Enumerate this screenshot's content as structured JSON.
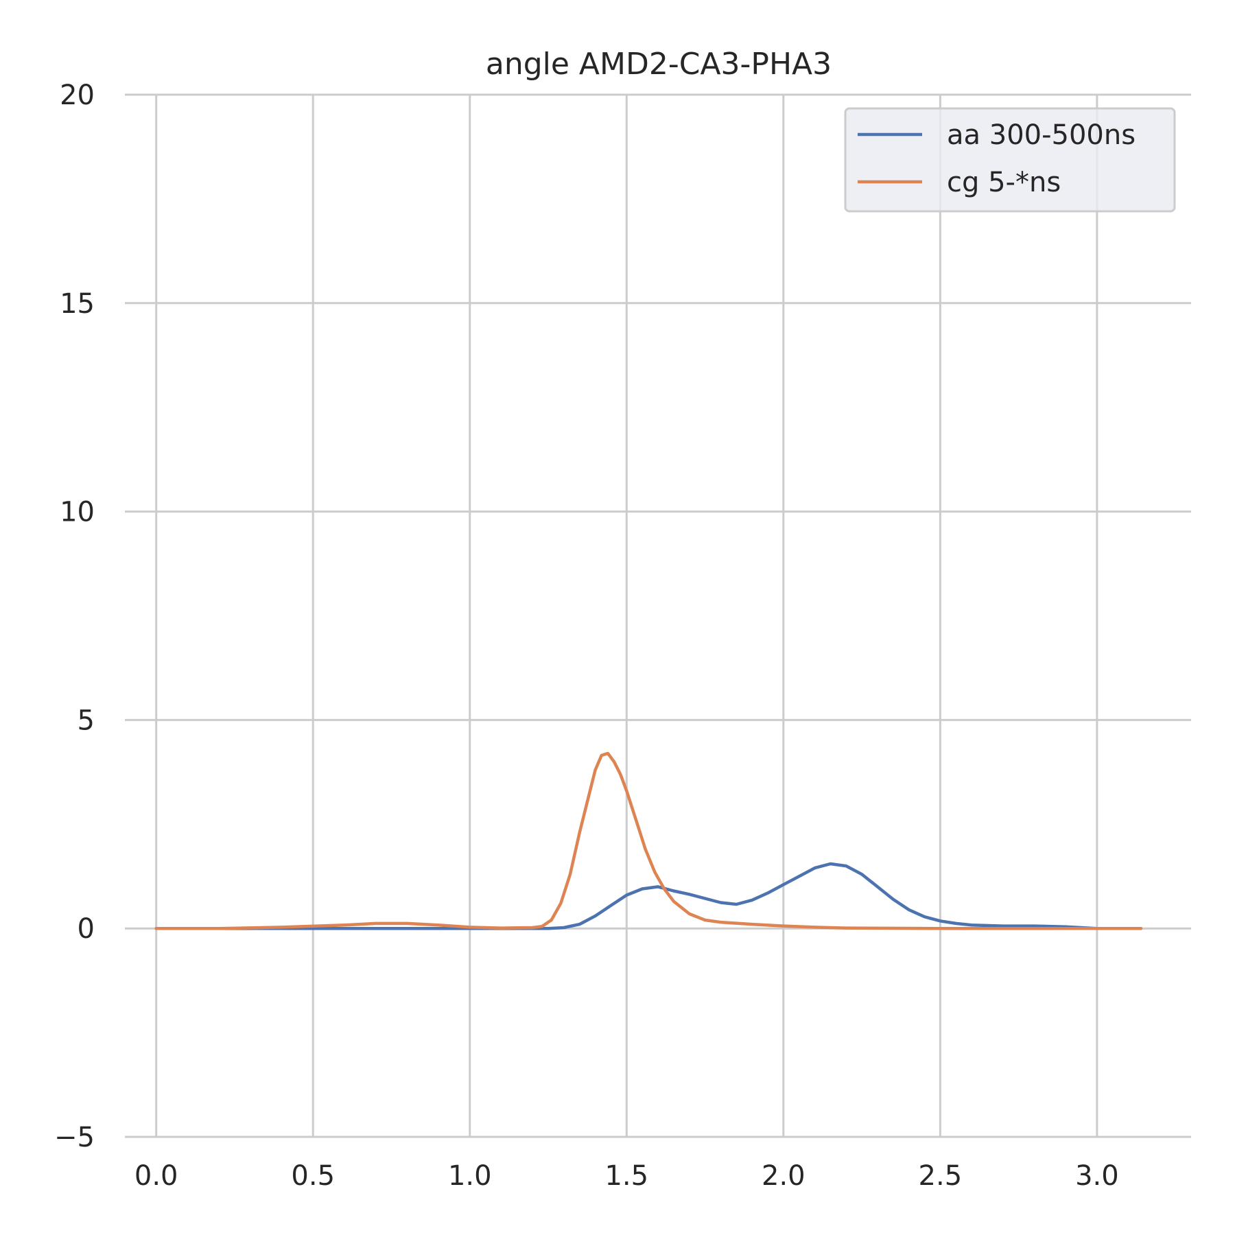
{
  "chart_data": {
    "type": "line",
    "title": "angle AMD2-CA3-PHA3",
    "xlabel": "",
    "ylabel": "",
    "xlim": [
      -0.1,
      3.3
    ],
    "ylim": [
      -5,
      20
    ],
    "x_ticks": [
      0.0,
      0.5,
      1.0,
      1.5,
      2.0,
      2.5,
      3.0
    ],
    "x_tick_labels": [
      "0.0",
      "0.5",
      "1.0",
      "1.5",
      "2.0",
      "2.5",
      "3.0"
    ],
    "y_ticks": [
      -5,
      0,
      5,
      10,
      15,
      20
    ],
    "y_tick_labels": [
      "−5",
      "0",
      "5",
      "10",
      "15",
      "20"
    ],
    "grid": true,
    "legend_position": "top-right",
    "series": [
      {
        "name": "aa 300-500ns",
        "color": "#4c72b0",
        "points": [
          [
            0.0,
            0.0
          ],
          [
            0.5,
            0.0
          ],
          [
            1.0,
            0.0
          ],
          [
            1.2,
            0.0
          ],
          [
            1.25,
            0.0
          ],
          [
            1.3,
            0.02
          ],
          [
            1.35,
            0.1
          ],
          [
            1.4,
            0.3
          ],
          [
            1.45,
            0.55
          ],
          [
            1.5,
            0.8
          ],
          [
            1.55,
            0.95
          ],
          [
            1.6,
            1.0
          ],
          [
            1.65,
            0.9
          ],
          [
            1.7,
            0.82
          ],
          [
            1.75,
            0.72
          ],
          [
            1.8,
            0.62
          ],
          [
            1.85,
            0.58
          ],
          [
            1.9,
            0.68
          ],
          [
            1.95,
            0.85
          ],
          [
            2.0,
            1.05
          ],
          [
            2.05,
            1.25
          ],
          [
            2.1,
            1.45
          ],
          [
            2.15,
            1.55
          ],
          [
            2.2,
            1.5
          ],
          [
            2.25,
            1.3
          ],
          [
            2.3,
            1.0
          ],
          [
            2.35,
            0.7
          ],
          [
            2.4,
            0.45
          ],
          [
            2.45,
            0.28
          ],
          [
            2.5,
            0.18
          ],
          [
            2.55,
            0.12
          ],
          [
            2.6,
            0.08
          ],
          [
            2.7,
            0.06
          ],
          [
            2.8,
            0.06
          ],
          [
            2.9,
            0.04
          ],
          [
            3.0,
            0.0
          ],
          [
            3.14,
            0.0
          ]
        ]
      },
      {
        "name": "cg 5-*ns",
        "color": "#dd8452",
        "points": [
          [
            0.0,
            0.0
          ],
          [
            0.2,
            0.0
          ],
          [
            0.4,
            0.03
          ],
          [
            0.6,
            0.08
          ],
          [
            0.7,
            0.12
          ],
          [
            0.8,
            0.12
          ],
          [
            0.9,
            0.08
          ],
          [
            1.0,
            0.03
          ],
          [
            1.1,
            0.01
          ],
          [
            1.2,
            0.02
          ],
          [
            1.23,
            0.05
          ],
          [
            1.26,
            0.2
          ],
          [
            1.29,
            0.6
          ],
          [
            1.32,
            1.3
          ],
          [
            1.35,
            2.3
          ],
          [
            1.38,
            3.2
          ],
          [
            1.4,
            3.8
          ],
          [
            1.42,
            4.15
          ],
          [
            1.44,
            4.2
          ],
          [
            1.46,
            4.0
          ],
          [
            1.48,
            3.7
          ],
          [
            1.5,
            3.3
          ],
          [
            1.53,
            2.6
          ],
          [
            1.56,
            1.9
          ],
          [
            1.59,
            1.35
          ],
          [
            1.62,
            0.95
          ],
          [
            1.65,
            0.65
          ],
          [
            1.7,
            0.35
          ],
          [
            1.75,
            0.2
          ],
          [
            1.8,
            0.15
          ],
          [
            1.9,
            0.1
          ],
          [
            2.0,
            0.06
          ],
          [
            2.1,
            0.03
          ],
          [
            2.2,
            0.01
          ],
          [
            2.5,
            0.0
          ],
          [
            3.14,
            0.0
          ]
        ]
      }
    ]
  }
}
